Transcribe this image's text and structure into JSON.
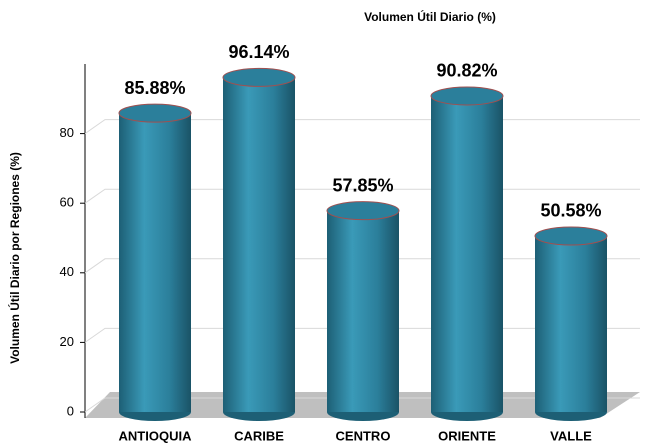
{
  "chart_data": {
    "type": "bar",
    "title": "Volumen Útil Diario (%)",
    "y_label": "Volumen Útil Diario por Regiones (%)",
    "categories": [
      "ANTIOQUIA",
      "CARIBE",
      "CENTRO",
      "ORIENTE",
      "VALLE"
    ],
    "values": [
      85.88,
      96.14,
      57.85,
      90.82,
      50.58
    ],
    "value_labels": [
      "85.88%",
      "96.14%",
      "57.85%",
      "90.82%",
      "50.58%"
    ],
    "color": "#2b7f9b",
    "ylim": [
      0,
      100
    ],
    "yticks": [
      0,
      20,
      40,
      60,
      80
    ],
    "grid": true
  }
}
